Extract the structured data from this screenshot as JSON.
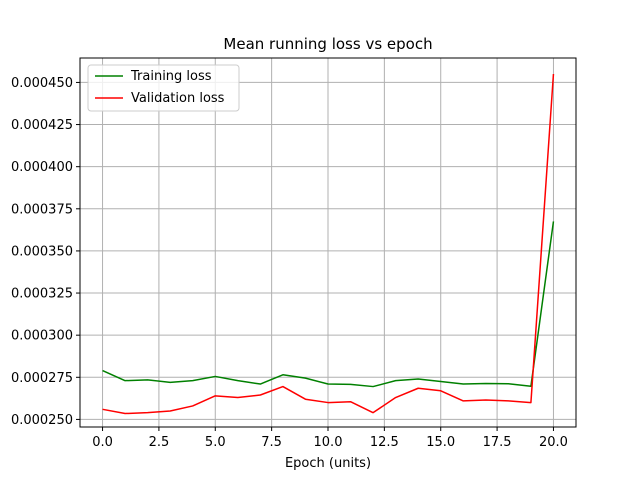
{
  "chart_data": {
    "type": "line",
    "title": "Mean running loss vs epoch",
    "xlabel": "Epoch (units)",
    "ylabel": "",
    "xlim": [
      -1.0,
      21.0
    ],
    "ylim": [
      0.0002455,
      0.0004645
    ],
    "grid": true,
    "legend_position": "top-left",
    "x_ticks": [
      0.0,
      2.5,
      5.0,
      7.5,
      10.0,
      12.5,
      15.0,
      17.5,
      20.0
    ],
    "x_tick_labels": [
      "0.0",
      "2.5",
      "5.0",
      "7.5",
      "10.0",
      "12.5",
      "15.0",
      "17.5",
      "20.0"
    ],
    "y_ticks": [
      0.00025,
      0.000275,
      0.0003,
      0.000325,
      0.00035,
      0.000375,
      0.0004,
      0.000425,
      0.00045
    ],
    "y_tick_labels": [
      "0.000250",
      "0.000275",
      "0.000300",
      "0.000325",
      "0.000350",
      "0.000375",
      "0.000400",
      "0.000425",
      "0.000450"
    ],
    "x": [
      0,
      1,
      2,
      3,
      4,
      5,
      6,
      7,
      8,
      9,
      10,
      11,
      12,
      13,
      14,
      15,
      16,
      17,
      18,
      19,
      20
    ],
    "series": [
      {
        "name": "Training loss",
        "color": "#008000",
        "values": [
          0.000279,
          0.000273,
          0.0002735,
          0.000272,
          0.000273,
          0.0002755,
          0.000273,
          0.000271,
          0.0002765,
          0.0002745,
          0.000271,
          0.0002708,
          0.0002695,
          0.000273,
          0.000274,
          0.0002725,
          0.000271,
          0.0002713,
          0.0002712,
          0.0002697,
          0.0003675
        ]
      },
      {
        "name": "Validation loss",
        "color": "#ff0000",
        "values": [
          0.000256,
          0.0002535,
          0.000254,
          0.000255,
          0.000258,
          0.000264,
          0.000263,
          0.0002645,
          0.0002695,
          0.000262,
          0.00026,
          0.0002605,
          0.000254,
          0.000263,
          0.0002685,
          0.000267,
          0.000261,
          0.0002615,
          0.000261,
          0.00026,
          0.000455
        ]
      }
    ]
  }
}
